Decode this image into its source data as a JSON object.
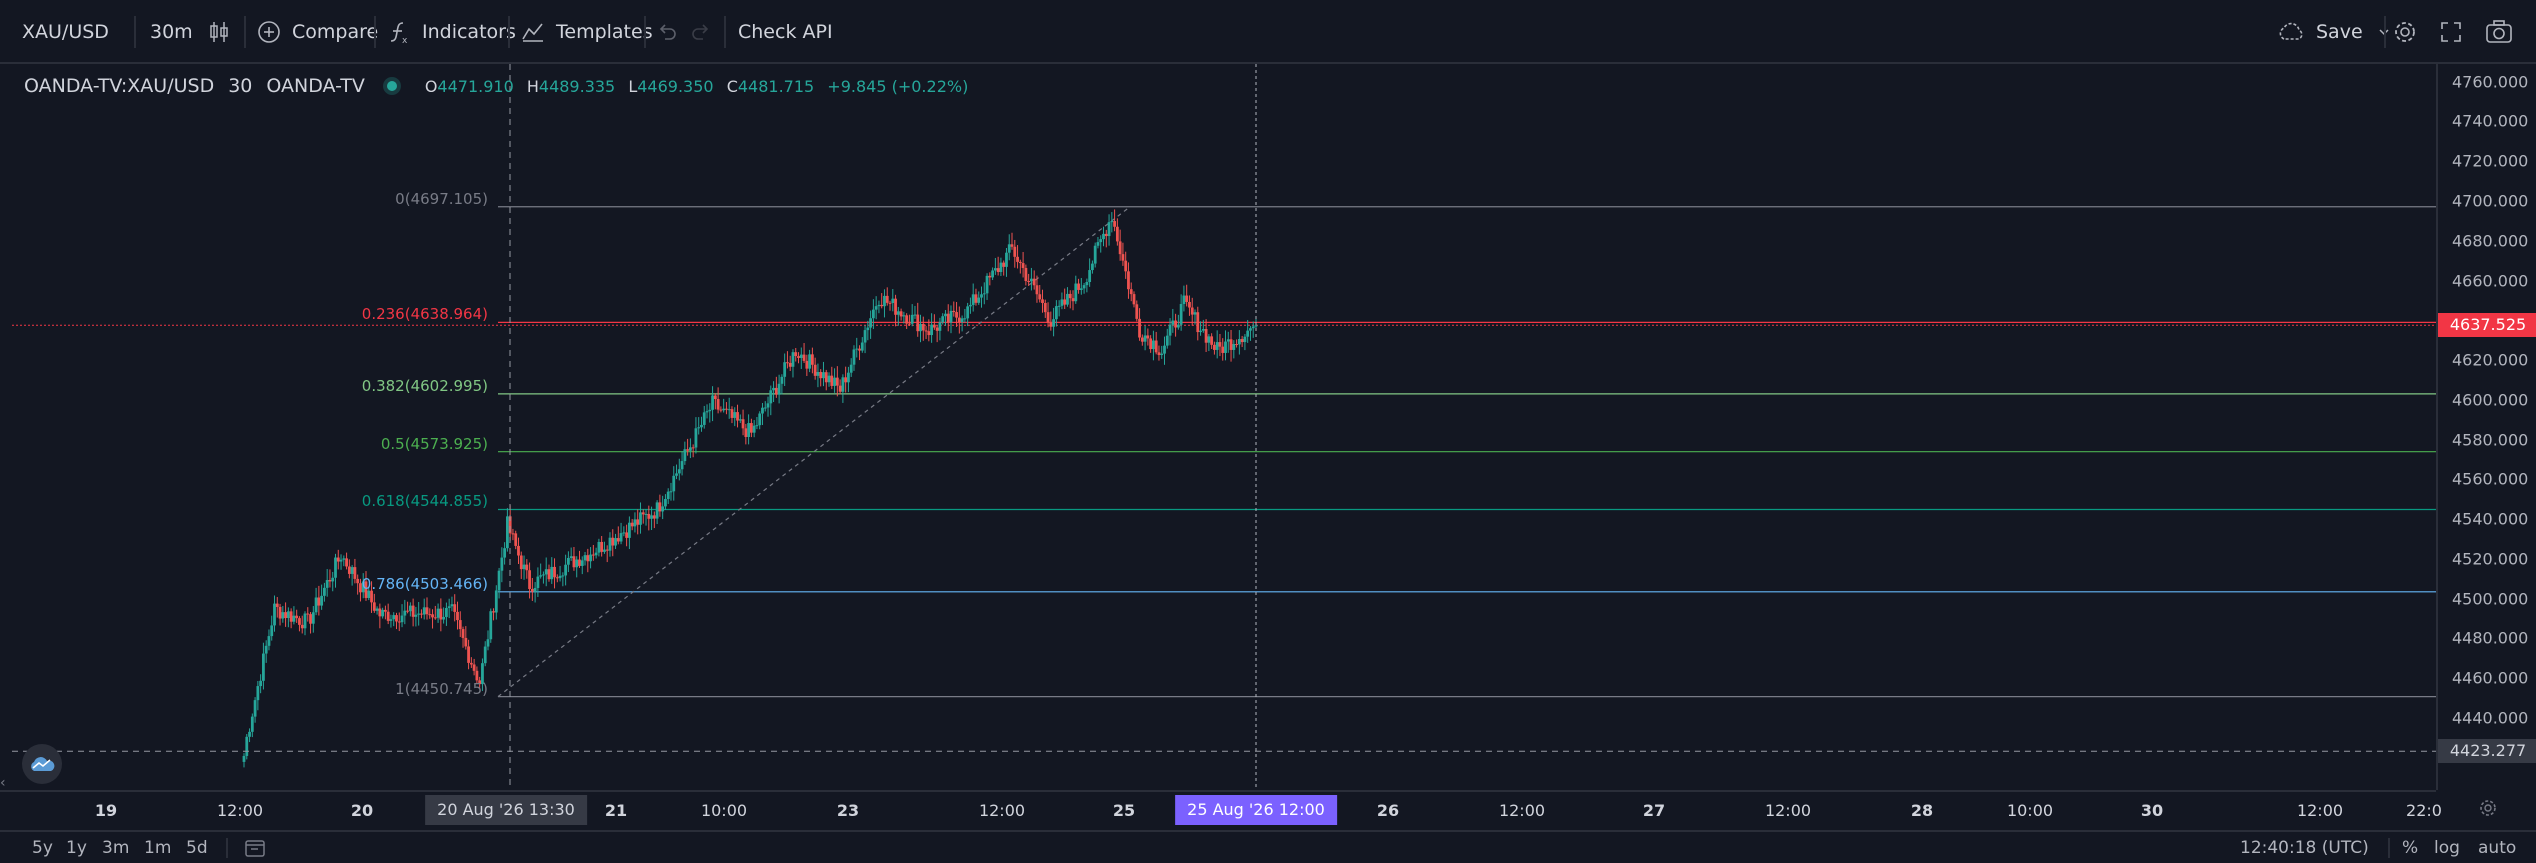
{
  "toolbar": {
    "symbol": "XAU/USD",
    "interval": "30m",
    "compare_label": "Compare",
    "indicators_label": "Indicators",
    "templates_label": "Templates",
    "check_api_label": "Check API",
    "save_label": "Save"
  },
  "legend": {
    "symbol_full": "OANDA-TV:XAU/USD",
    "interval": "30",
    "exchange": "OANDA-TV",
    "o_label": "O",
    "o": "4471.910",
    "h_label": "H",
    "h": "4489.335",
    "l_label": "L",
    "l": "4469.350",
    "c_label": "C",
    "c": "4481.715",
    "change": "+9.845 (+0.22%)"
  },
  "price_scale": {
    "ticks": [
      "4760.000",
      "4740.000",
      "4720.000",
      "4700.000",
      "4680.000",
      "4660.000",
      "4620.000",
      "4600.000",
      "4580.000",
      "4560.000",
      "4540.000",
      "4520.000",
      "4500.000",
      "4480.000",
      "4460.000",
      "4440.000"
    ],
    "current_price": "4637.525",
    "crosshair_price": "4423.277"
  },
  "fib_levels": [
    {
      "label": "0(4697.105)",
      "price": 4697.105,
      "color": "#787b86"
    },
    {
      "label": "0.236(4638.964)",
      "price": 4638.964,
      "color": "#f23645"
    },
    {
      "label": "0.382(4602.995)",
      "price": 4602.995,
      "color": "#81c784"
    },
    {
      "label": "0.5(4573.925)",
      "price": 4573.925,
      "color": "#4caf50"
    },
    {
      "label": "0.618(4544.855)",
      "price": 4544.855,
      "color": "#089981"
    },
    {
      "label": "0.786(4503.466)",
      "price": 4503.466,
      "color": "#64b5f6"
    },
    {
      "label": "1(4450.745)",
      "price": 4450.745,
      "color": "#787b86"
    }
  ],
  "time_axis": {
    "ticks": [
      "19",
      "12:00",
      "20",
      "21",
      "10:00",
      "23",
      "12:00",
      "25",
      "26",
      "12:00",
      "27",
      "12:00",
      "28",
      "10:00",
      "30",
      "12:00",
      "22:0"
    ],
    "crosshair_left": "20 Aug '26   13:30",
    "crosshair_right": "25 Aug '26   12:00"
  },
  "bottombar": {
    "ranges": [
      "5y",
      "1y",
      "3m",
      "1m",
      "5d"
    ],
    "clock": "12:40:18 (UTC)",
    "percent": "%",
    "log": "log",
    "auto": "auto"
  },
  "colors": {
    "up": "#26a69a",
    "down": "#ef5350",
    "background": "#131722",
    "current_price_badge": "#f23645",
    "crosshair_badge": "#7b61ff"
  },
  "chart_data": {
    "type": "candlestick",
    "symbol": "XAU/USD",
    "interval": "30m",
    "ylim": [
      4412,
      4770
    ],
    "segments": [
      {
        "start": 4412,
        "end": 4430,
        "n": 2
      },
      {
        "start": 4430,
        "end": 4495,
        "n": 10
      },
      {
        "start": 4495,
        "end": 4488,
        "n": 12
      },
      {
        "start": 4488,
        "end": 4522,
        "n": 12
      },
      {
        "start": 4522,
        "end": 4492,
        "n": 14
      },
      {
        "start": 4492,
        "end": 4493,
        "n": 26
      },
      {
        "start": 4493,
        "end": 4458,
        "n": 10
      },
      {
        "start": 4458,
        "end": 4537,
        "n": 10
      },
      {
        "start": 4537,
        "end": 4507,
        "n": 8
      },
      {
        "start": 4507,
        "end": 4525,
        "n": 24
      },
      {
        "start": 4525,
        "end": 4545,
        "n": 22
      },
      {
        "start": 4545,
        "end": 4598,
        "n": 20
      },
      {
        "start": 4598,
        "end": 4583,
        "n": 14
      },
      {
        "start": 4583,
        "end": 4625,
        "n": 16
      },
      {
        "start": 4625,
        "end": 4605,
        "n": 16
      },
      {
        "start": 4605,
        "end": 4652,
        "n": 14
      },
      {
        "start": 4652,
        "end": 4635,
        "n": 18
      },
      {
        "start": 4635,
        "end": 4645,
        "n": 14
      },
      {
        "start": 4645,
        "end": 4676,
        "n": 16
      },
      {
        "start": 4676,
        "end": 4640,
        "n": 14
      },
      {
        "start": 4640,
        "end": 4660,
        "n": 12
      },
      {
        "start": 4660,
        "end": 4693,
        "n": 10
      },
      {
        "start": 4693,
        "end": 4635,
        "n": 10
      },
      {
        "start": 4635,
        "end": 4625,
        "n": 8
      },
      {
        "start": 4625,
        "end": 4648,
        "n": 8
      },
      {
        "start": 4648,
        "end": 4625,
        "n": 12
      },
      {
        "start": 4625,
        "end": 4637.525,
        "n": 14
      }
    ]
  }
}
